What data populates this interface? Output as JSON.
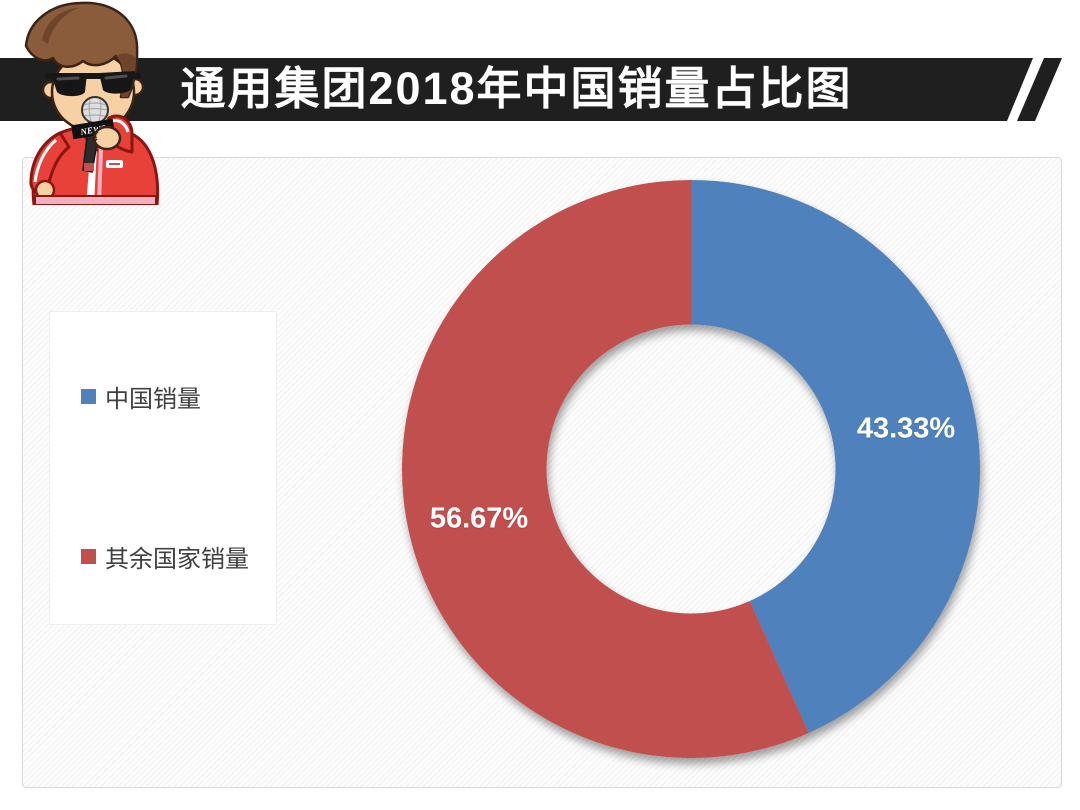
{
  "header": {
    "title": "通用集团2018年中国销量占比图"
  },
  "mascot": {
    "description": "cartoon reporter with brown hair, sunglasses, red track jacket holding microphone",
    "mic_flag_text": "NEWS"
  },
  "colors": {
    "banner_black": "#1f1f1f",
    "china_blue": "#4f81bd",
    "others_red": "#c0504d",
    "panel_border": "#d9d9d9",
    "legend_text": "#404040",
    "data_label_text": "#ffffff"
  },
  "chart_data": {
    "type": "pie",
    "subtype": "donut",
    "title": "通用集团2018年中国销量占比图",
    "categories": [
      "中国销量",
      "其余国家销量"
    ],
    "values": [
      43.33,
      56.67
    ],
    "unit": "%",
    "data_labels": [
      "43.33%",
      "56.67%"
    ],
    "colors": [
      "#4f81bd",
      "#c0504d"
    ],
    "hole_ratio": 0.5,
    "start_angle_deg": 0,
    "direction": "clockwise",
    "legend_position": "middle-left",
    "grid": false
  },
  "legend": {
    "items": [
      {
        "label": "中国销量",
        "color": "#4f81bd"
      },
      {
        "label": "其余国家销量",
        "color": "#c0504d"
      }
    ]
  }
}
